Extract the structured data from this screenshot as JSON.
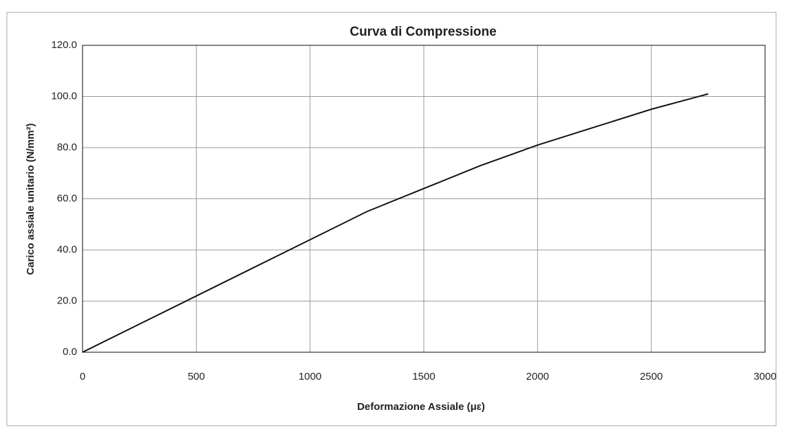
{
  "chart_data": {
    "type": "line",
    "title": "Curva di Compressione",
    "x_label": "Deformazione Assiale (με)",
    "y_label": "Carico assiale unitario (N/mm²)",
    "x": [
      0,
      250,
      500,
      750,
      1000,
      1250,
      1500,
      1750,
      2000,
      2250,
      2500,
      2750
    ],
    "values": [
      0,
      11,
      22,
      33,
      44,
      55,
      64,
      73,
      81,
      88,
      95,
      101
    ],
    "color": "#111111",
    "xlim": [
      0,
      3000
    ],
    "xticks": [
      0,
      500,
      1000,
      1500,
      2000,
      2500,
      3000
    ],
    "ylim": [
      0,
      120
    ],
    "yticks": [
      {
        "value": 0,
        "label": "0.0"
      },
      {
        "value": 20,
        "label": "20.0"
      },
      {
        "value": 40,
        "label": "40.0"
      },
      {
        "value": 60,
        "label": "60.0"
      },
      {
        "value": 80,
        "label": "80.0"
      },
      {
        "value": 100,
        "label": "100.0"
      },
      {
        "value": 120,
        "label": "120.0"
      }
    ],
    "grid": true
  }
}
